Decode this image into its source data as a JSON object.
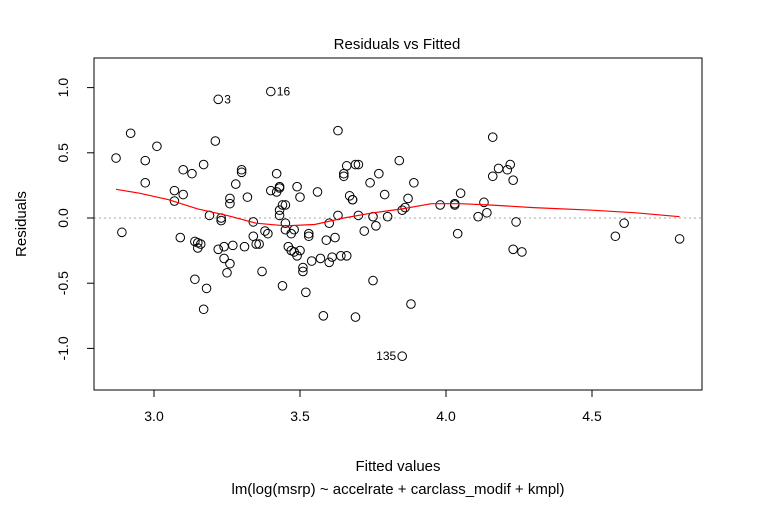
{
  "chart_data": {
    "type": "scatter",
    "title": "Residuals vs Fitted",
    "xlabel": "Fitted values",
    "sublabel": "lm(log(msrp) ~ accelrate + carclass_modif + kmpl)",
    "ylabel": "Residuals",
    "xlim": [
      2.8,
      4.9
    ],
    "ylim": [
      -1.3,
      1.2
    ],
    "xticks": [
      3.0,
      3.5,
      4.0,
      4.5
    ],
    "xtick_labels": [
      "3.0",
      "3.5",
      "4.0",
      "4.5"
    ],
    "yticks": [
      -1.0,
      -0.5,
      0.0,
      0.5,
      1.0
    ],
    "ytick_labels": [
      "-1.0",
      "-0.5",
      "0.0",
      "0.5",
      "1.0"
    ],
    "grid": false,
    "reference_line": {
      "y": 0,
      "style": "dotted",
      "color": "#aaaaaa"
    },
    "point_color": "#000000",
    "smoother_color": "#ff0000",
    "labeled_points": [
      {
        "label": "3",
        "x": 3.22,
        "y": 0.91
      },
      {
        "label": "16",
        "x": 3.4,
        "y": 0.97
      },
      {
        "label": "135",
        "x": 3.85,
        "y": -1.06
      }
    ],
    "points": [
      [
        2.87,
        0.46
      ],
      [
        2.89,
        -0.11
      ],
      [
        2.92,
        0.65
      ],
      [
        2.97,
        0.44
      ],
      [
        2.97,
        0.27
      ],
      [
        3.01,
        0.55
      ],
      [
        3.07,
        0.13
      ],
      [
        3.07,
        0.21
      ],
      [
        3.09,
        -0.15
      ],
      [
        3.1,
        0.37
      ],
      [
        3.1,
        0.18
      ],
      [
        3.13,
        0.34
      ],
      [
        3.14,
        -0.18
      ],
      [
        3.14,
        -0.47
      ],
      [
        3.15,
        -0.19
      ],
      [
        3.15,
        -0.23
      ],
      [
        3.16,
        -0.2
      ],
      [
        3.17,
        0.41
      ],
      [
        3.17,
        -0.7
      ],
      [
        3.18,
        -0.54
      ],
      [
        3.19,
        0.02
      ],
      [
        3.21,
        0.59
      ],
      [
        3.22,
        -0.24
      ],
      [
        3.23,
        0.0
      ],
      [
        3.23,
        -0.02
      ],
      [
        3.24,
        -0.31
      ],
      [
        3.24,
        -0.22
      ],
      [
        3.25,
        -0.42
      ],
      [
        3.26,
        0.11
      ],
      [
        3.26,
        0.15
      ],
      [
        3.26,
        -0.35
      ],
      [
        3.27,
        -0.21
      ],
      [
        3.28,
        0.26
      ],
      [
        3.3,
        0.37
      ],
      [
        3.3,
        0.35
      ],
      [
        3.31,
        -0.22
      ],
      [
        3.32,
        0.16
      ],
      [
        3.34,
        -0.03
      ],
      [
        3.34,
        -0.14
      ],
      [
        3.35,
        -0.2
      ],
      [
        3.36,
        -0.2
      ],
      [
        3.37,
        -0.41
      ],
      [
        3.38,
        -0.1
      ],
      [
        3.39,
        -0.12
      ],
      [
        3.4,
        0.21
      ],
      [
        3.42,
        0.34
      ],
      [
        3.42,
        0.2
      ],
      [
        3.43,
        0.24
      ],
      [
        3.43,
        0.23
      ],
      [
        3.43,
        0.06
      ],
      [
        3.43,
        0.02
      ],
      [
        3.44,
        -0.52
      ],
      [
        3.44,
        0.1
      ],
      [
        3.45,
        0.1
      ],
      [
        3.45,
        -0.04
      ],
      [
        3.45,
        -0.09
      ],
      [
        3.46,
        -0.22
      ],
      [
        3.47,
        -0.25
      ],
      [
        3.47,
        -0.12
      ],
      [
        3.48,
        -0.09
      ],
      [
        3.48,
        -0.26
      ],
      [
        3.49,
        0.24
      ],
      [
        3.49,
        -0.29
      ],
      [
        3.5,
        0.16
      ],
      [
        3.5,
        -0.25
      ],
      [
        3.51,
        -0.38
      ],
      [
        3.51,
        -0.41
      ],
      [
        3.52,
        -0.57
      ],
      [
        3.53,
        -0.12
      ],
      [
        3.53,
        -0.14
      ],
      [
        3.54,
        -0.33
      ],
      [
        3.56,
        0.2
      ],
      [
        3.57,
        -0.31
      ],
      [
        3.58,
        -0.75
      ],
      [
        3.59,
        -0.17
      ],
      [
        3.6,
        -0.04
      ],
      [
        3.6,
        -0.34
      ],
      [
        3.61,
        -0.3
      ],
      [
        3.62,
        -0.15
      ],
      [
        3.63,
        0.67
      ],
      [
        3.63,
        0.02
      ],
      [
        3.64,
        -0.29
      ],
      [
        3.65,
        0.32
      ],
      [
        3.65,
        0.34
      ],
      [
        3.66,
        -0.29
      ],
      [
        3.66,
        0.4
      ],
      [
        3.67,
        0.17
      ],
      [
        3.68,
        0.14
      ],
      [
        3.68,
        0.14
      ],
      [
        3.69,
        0.41
      ],
      [
        3.69,
        -0.76
      ],
      [
        3.7,
        0.41
      ],
      [
        3.7,
        0.02
      ],
      [
        3.72,
        -0.1
      ],
      [
        3.74,
        0.27
      ],
      [
        3.75,
        -0.48
      ],
      [
        3.75,
        0.01
      ],
      [
        3.76,
        -0.06
      ],
      [
        3.77,
        0.34
      ],
      [
        3.79,
        0.18
      ],
      [
        3.8,
        0.01
      ],
      [
        3.84,
        0.44
      ],
      [
        3.85,
        0.06
      ],
      [
        3.86,
        0.08
      ],
      [
        3.87,
        0.15
      ],
      [
        3.88,
        -0.66
      ],
      [
        3.89,
        0.27
      ],
      [
        3.98,
        0.1
      ],
      [
        4.03,
        0.1
      ],
      [
        4.03,
        0.11
      ],
      [
        4.04,
        -0.12
      ],
      [
        4.05,
        0.19
      ],
      [
        4.11,
        0.01
      ],
      [
        4.13,
        0.12
      ],
      [
        4.14,
        0.04
      ],
      [
        4.16,
        0.62
      ],
      [
        4.16,
        0.32
      ],
      [
        4.18,
        0.38
      ],
      [
        4.21,
        0.37
      ],
      [
        4.22,
        0.41
      ],
      [
        4.23,
        0.29
      ],
      [
        4.23,
        -0.24
      ],
      [
        4.24,
        -0.03
      ],
      [
        4.26,
        -0.26
      ],
      [
        4.58,
        -0.14
      ],
      [
        4.61,
        -0.04
      ],
      [
        4.8,
        -0.16
      ]
    ],
    "smoother": [
      [
        2.87,
        0.22
      ],
      [
        2.95,
        0.19
      ],
      [
        3.05,
        0.14
      ],
      [
        3.15,
        0.07
      ],
      [
        3.25,
        0.02
      ],
      [
        3.35,
        -0.04
      ],
      [
        3.45,
        -0.06
      ],
      [
        3.55,
        -0.05
      ],
      [
        3.65,
        0.0
      ],
      [
        3.75,
        0.04
      ],
      [
        3.85,
        0.07
      ],
      [
        3.95,
        0.11
      ],
      [
        4.05,
        0.11
      ],
      [
        4.15,
        0.1
      ],
      [
        4.3,
        0.08
      ],
      [
        4.5,
        0.06
      ],
      [
        4.65,
        0.04
      ],
      [
        4.8,
        0.01
      ]
    ]
  }
}
